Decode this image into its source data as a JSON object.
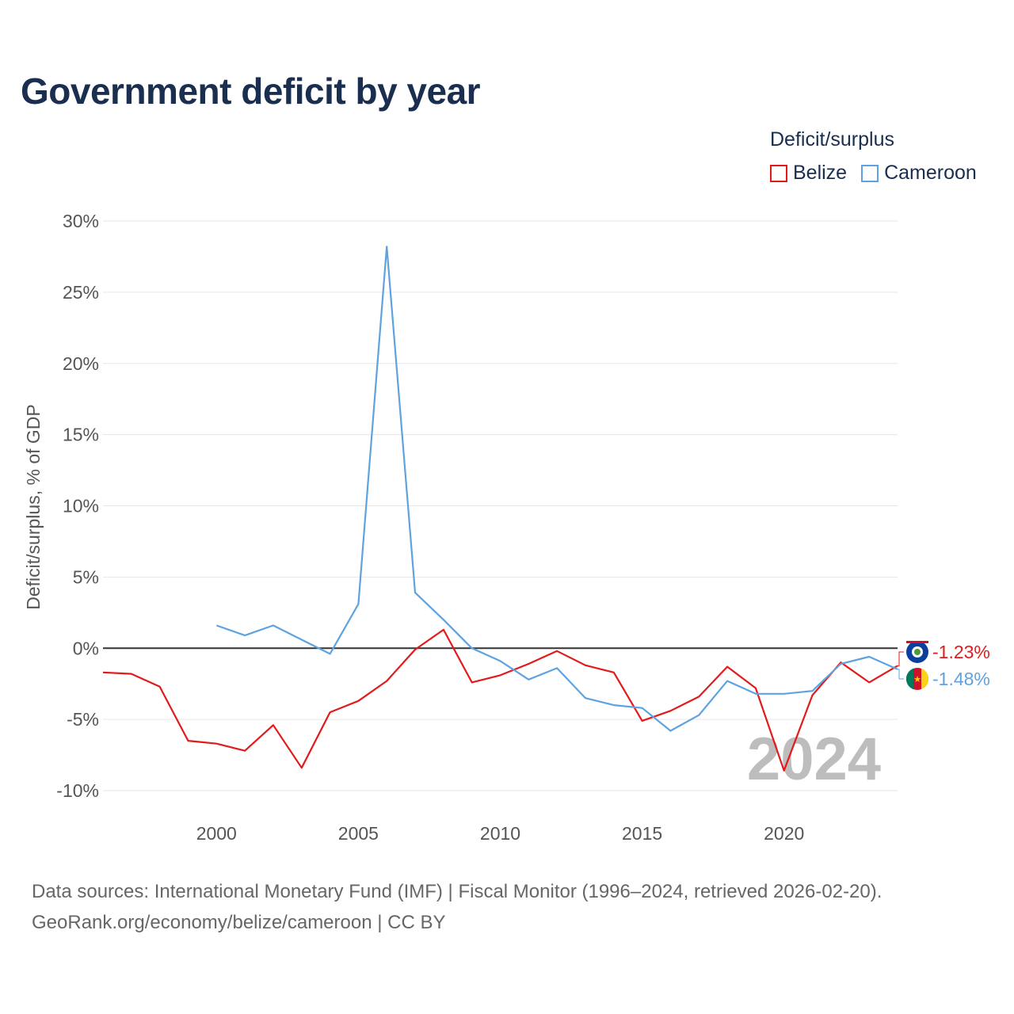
{
  "title": "Government deficit by year",
  "legend": {
    "title": "Deficit/surplus",
    "items": [
      {
        "label": "Belize",
        "color": "#e31a1c"
      },
      {
        "label": "Cameroon",
        "color": "#5fa2e0"
      }
    ]
  },
  "year_watermark": "2024",
  "source_line1": "Data sources: International Monetary Fund (IMF) | Fiscal Monitor (1996–2024, retrieved 2026-02-20).",
  "source_line2": "GeoRank.org/economy/belize/cameroon | CC BY",
  "chart_data": {
    "type": "line",
    "title": "Government deficit by year",
    "xlabel": "",
    "ylabel": "Deficit/surplus, % of GDP",
    "xlim": [
      1996,
      2024
    ],
    "ylim": [
      -10,
      30
    ],
    "yticks": [
      30,
      25,
      20,
      15,
      10,
      5,
      0,
      -5,
      -10
    ],
    "ytick_labels": [
      "30%",
      "25%",
      "20%",
      "15%",
      "10%",
      "5%",
      "0%",
      "-5%",
      "-10%"
    ],
    "xticks": [
      2000,
      2005,
      2010,
      2015,
      2020
    ],
    "xtick_labels": [
      "2000",
      "2005",
      "2010",
      "2015",
      "2020"
    ],
    "grid": true,
    "legend_position": "top-right",
    "series": [
      {
        "name": "Belize",
        "color": "#e31a1c",
        "end_label": "-1.23%",
        "points": [
          [
            1996,
            -1.7
          ],
          [
            1997,
            -1.8
          ],
          [
            1998,
            -2.7
          ],
          [
            1999,
            -6.5
          ],
          [
            2000,
            -6.7
          ],
          [
            2001,
            -7.2
          ],
          [
            2002,
            -5.4
          ],
          [
            2003,
            -8.4
          ],
          [
            2004,
            -4.5
          ],
          [
            2005,
            -3.7
          ],
          [
            2006,
            -2.3
          ],
          [
            2007,
            -0.1
          ],
          [
            2008,
            1.3
          ],
          [
            2009,
            -2.4
          ],
          [
            2010,
            -1.9
          ],
          [
            2011,
            -1.1
          ],
          [
            2012,
            -0.2
          ],
          [
            2013,
            -1.2
          ],
          [
            2014,
            -1.7
          ],
          [
            2015,
            -5.1
          ],
          [
            2016,
            -4.4
          ],
          [
            2017,
            -3.4
          ],
          [
            2018,
            -1.3
          ],
          [
            2019,
            -2.8
          ],
          [
            2020,
            -8.6
          ],
          [
            2021,
            -3.3
          ],
          [
            2022,
            -1.0
          ],
          [
            2023,
            -2.4
          ],
          [
            2024,
            -1.23
          ]
        ]
      },
      {
        "name": "Cameroon",
        "color": "#5fa2e0",
        "end_label": "-1.48%",
        "points": [
          [
            2000,
            1.6
          ],
          [
            2001,
            0.9
          ],
          [
            2002,
            1.6
          ],
          [
            2003,
            0.6
          ],
          [
            2004,
            -0.4
          ],
          [
            2005,
            3.1
          ],
          [
            2006,
            28.2
          ],
          [
            2007,
            3.9
          ],
          [
            2008,
            2.0
          ],
          [
            2009,
            0.0
          ],
          [
            2010,
            -0.9
          ],
          [
            2011,
            -2.2
          ],
          [
            2012,
            -1.4
          ],
          [
            2013,
            -3.5
          ],
          [
            2014,
            -4.0
          ],
          [
            2015,
            -4.2
          ],
          [
            2016,
            -5.8
          ],
          [
            2017,
            -4.7
          ],
          [
            2018,
            -2.3
          ],
          [
            2019,
            -3.2
          ],
          [
            2020,
            -3.2
          ],
          [
            2021,
            -3.0
          ],
          [
            2022,
            -1.1
          ],
          [
            2023,
            -0.6
          ],
          [
            2024,
            -1.48
          ]
        ]
      }
    ]
  }
}
